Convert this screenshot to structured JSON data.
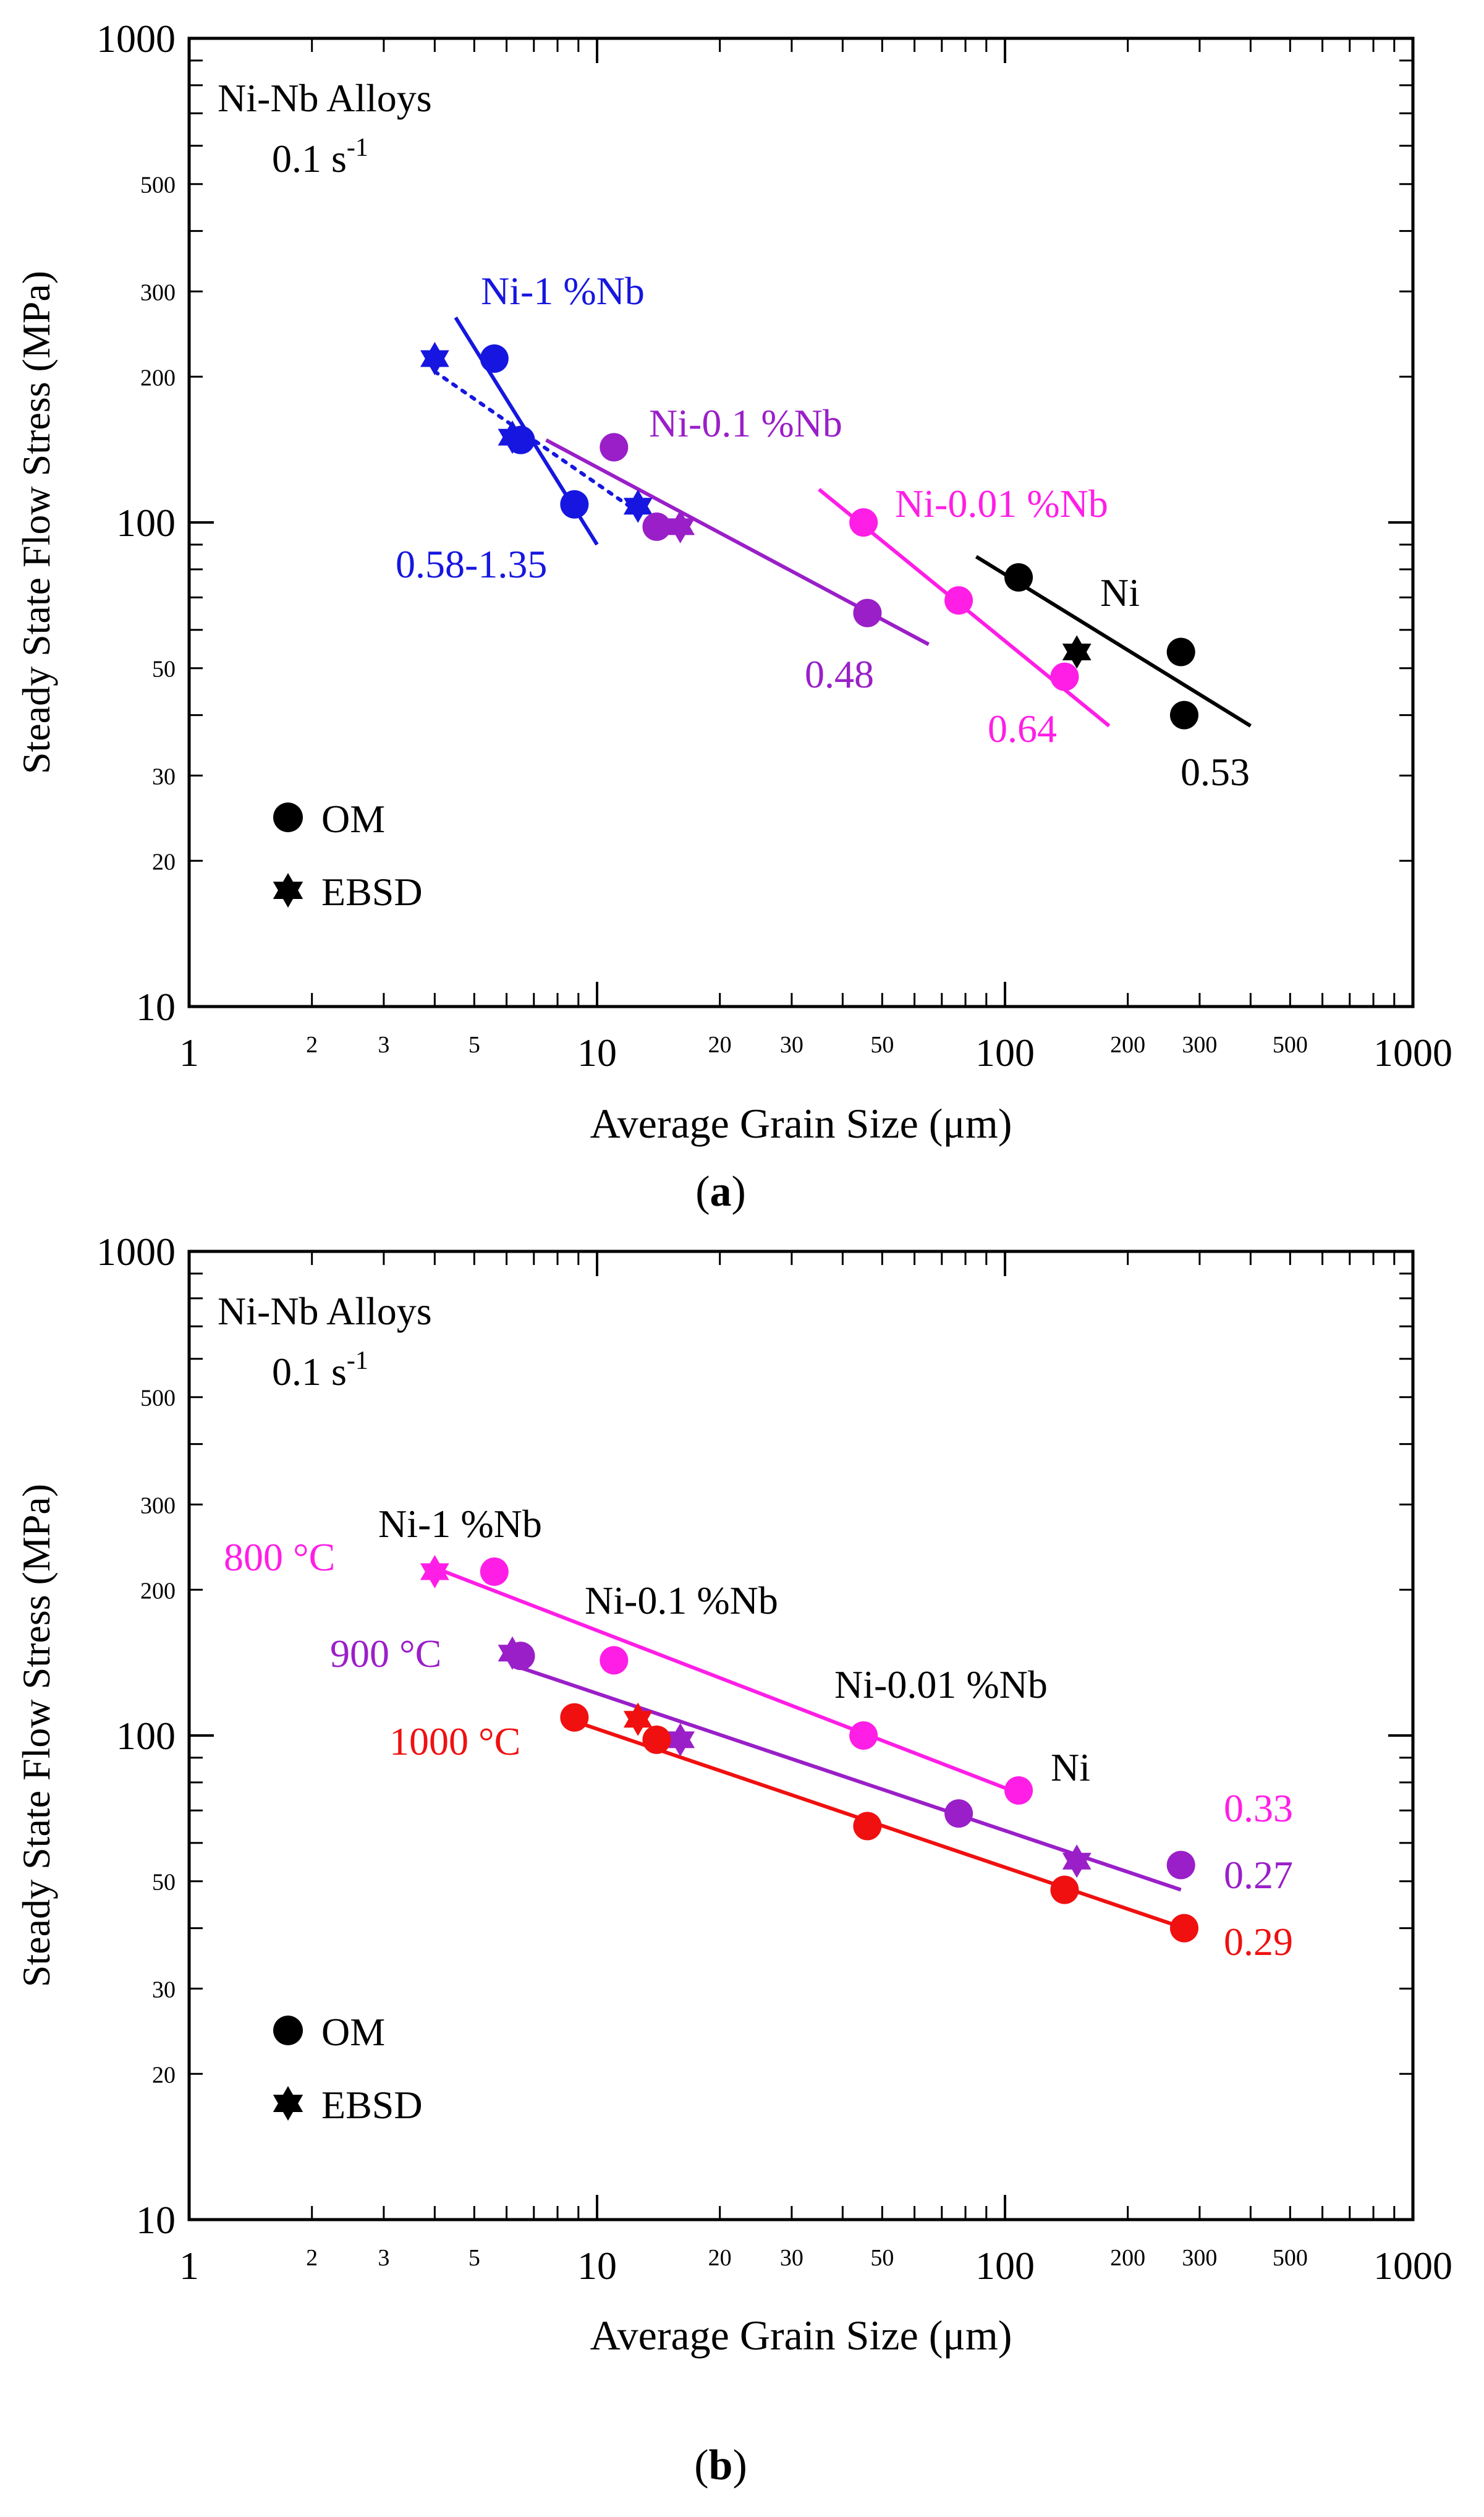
{
  "chart_data": [
    {
      "type": "scatter",
      "panel_label": "(a)",
      "panel_letter": "a",
      "xscale": "log",
      "yscale": "log",
      "xlim": [
        1,
        1000
      ],
      "ylim": [
        10,
        1000
      ],
      "xlabel": "Average Grain Size (μm)",
      "ylabel": "Steady State Flow Stress (MPa)",
      "x_major_ticks": [
        {
          "v": 1,
          "label": "1"
        },
        {
          "v": 10,
          "label": "10"
        },
        {
          "v": 100,
          "label": "100"
        },
        {
          "v": 1000,
          "label": "1000"
        }
      ],
      "x_minor_ticks": [
        {
          "v": 2,
          "label": "2"
        },
        {
          "v": 3,
          "label": "3"
        },
        {
          "v": 5,
          "label": "5"
        },
        {
          "v": 20,
          "label": "20"
        },
        {
          "v": 30,
          "label": "30"
        },
        {
          "v": 50,
          "label": "50"
        },
        {
          "v": 200,
          "label": "200"
        },
        {
          "v": 300,
          "label": "300"
        },
        {
          "v": 500,
          "label": "500"
        }
      ],
      "y_major_ticks": [
        {
          "v": 10,
          "label": "10"
        },
        {
          "v": 100,
          "label": "100"
        },
        {
          "v": 1000,
          "label": "1000"
        }
      ],
      "y_minor_ticks": [
        {
          "v": 20,
          "label": "20"
        },
        {
          "v": 30,
          "label": "30"
        },
        {
          "v": 50,
          "label": "50"
        },
        {
          "v": 200,
          "label": "200"
        },
        {
          "v": 300,
          "label": "300"
        },
        {
          "v": 500,
          "label": "500"
        }
      ],
      "inset_title": "Ni-Nb Alloys",
      "rate_text": "0.1 s",
      "rate_exp": "-1",
      "legend": [
        {
          "marker": "circle",
          "label": "OM"
        },
        {
          "marker": "star",
          "label": "EBSD"
        }
      ],
      "series": [
        {
          "name": "Ni-1 %Nb",
          "color": "#1616e0",
          "om": [
            [
              5.6,
              218
            ],
            [
              6.5,
              148
            ],
            [
              8.8,
              109
            ]
          ],
          "ebsd": [
            [
              4.0,
              218
            ],
            [
              6.2,
              150
            ],
            [
              12.6,
              108
            ]
          ],
          "fit": [
            [
              4.5,
              265
            ],
            [
              10.0,
              90
            ]
          ],
          "fit2": [
            [
              4.0,
              205
            ],
            [
              12.6,
              105
            ]
          ],
          "name_label": "Ni-1 %Nb",
          "exponent_label": "0.58-1.35"
        },
        {
          "name": "Ni-0.1 %Nb",
          "color": "#9a1fc8",
          "om": [
            [
              11,
              143
            ],
            [
              14,
              98
            ],
            [
              46,
              65
            ]
          ],
          "ebsd": [
            [
              16,
              98
            ]
          ],
          "fit": [
            [
              7.5,
              148
            ],
            [
              65,
              56
            ]
          ],
          "name_label": "Ni-0.1 %Nb",
          "exponent_label": "0.48"
        },
        {
          "name": "Ni-0.01 %Nb",
          "color": "#ff1ee6",
          "om": [
            [
              45,
              100
            ],
            [
              77,
              69
            ],
            [
              140,
              48
            ]
          ],
          "ebsd": [],
          "fit": [
            [
              35,
              117
            ],
            [
              180,
              38
            ]
          ],
          "name_label": "Ni-0.01 %Nb",
          "exponent_label": "0.64"
        },
        {
          "name": "Ni",
          "color": "#000000",
          "om": [
            [
              108,
              77
            ],
            [
              270,
              54
            ],
            [
              275,
              40
            ]
          ],
          "ebsd": [
            [
              150,
              54
            ]
          ],
          "fit": [
            [
              85,
              85
            ],
            [
              400,
              38
            ]
          ],
          "name_label": "Ni",
          "exponent_label": "0.53"
        }
      ]
    },
    {
      "type": "scatter",
      "panel_label": "(b)",
      "panel_letter": "b",
      "xscale": "log",
      "yscale": "log",
      "xlim": [
        1,
        1000
      ],
      "ylim": [
        10,
        1000
      ],
      "xlabel": "Average Grain Size (μm)",
      "ylabel": "Steady State Flow Stress (MPa)",
      "x_major_ticks": [
        {
          "v": 1,
          "label": "1"
        },
        {
          "v": 10,
          "label": "10"
        },
        {
          "v": 100,
          "label": "100"
        },
        {
          "v": 1000,
          "label": "1000"
        }
      ],
      "x_minor_ticks": [
        {
          "v": 2,
          "label": "2"
        },
        {
          "v": 3,
          "label": "3"
        },
        {
          "v": 5,
          "label": "5"
        },
        {
          "v": 20,
          "label": "20"
        },
        {
          "v": 30,
          "label": "30"
        },
        {
          "v": 50,
          "label": "50"
        },
        {
          "v": 200,
          "label": "200"
        },
        {
          "v": 300,
          "label": "300"
        },
        {
          "v": 500,
          "label": "500"
        }
      ],
      "y_major_ticks": [
        {
          "v": 10,
          "label": "10"
        },
        {
          "v": 100,
          "label": "100"
        },
        {
          "v": 1000,
          "label": "1000"
        }
      ],
      "y_minor_ticks": [
        {
          "v": 20,
          "label": "20"
        },
        {
          "v": 30,
          "label": "30"
        },
        {
          "v": 50,
          "label": "50"
        },
        {
          "v": 200,
          "label": "200"
        },
        {
          "v": 300,
          "label": "300"
        },
        {
          "v": 500,
          "label": "500"
        }
      ],
      "inset_title": "Ni-Nb Alloys",
      "rate_text": "0.1 s",
      "rate_exp": "-1",
      "legend": [
        {
          "marker": "circle",
          "label": "OM"
        },
        {
          "marker": "star",
          "label": "EBSD"
        }
      ],
      "material_labels": [
        "Ni-1 %Nb",
        "Ni-0.1 %Nb",
        "Ni-0.01 %Nb",
        "Ni"
      ],
      "series": [
        {
          "name": "800 °C",
          "color": "#ff1ee6",
          "om": [
            [
              5.6,
              218
            ],
            [
              11,
              143
            ],
            [
              45,
              100
            ],
            [
              108,
              77
            ]
          ],
          "ebsd": [
            [
              4.0,
              218
            ]
          ],
          "fit": [
            [
              4.0,
              222
            ],
            [
              108,
              76
            ]
          ],
          "name_label": "800 °C",
          "exponent_label": "0.33"
        },
        {
          "name": "900 °C",
          "color": "#9a1fc8",
          "om": [
            [
              6.5,
              146
            ],
            [
              77,
              69
            ],
            [
              270,
              54
            ]
          ],
          "ebsd": [
            [
              6.2,
              148
            ],
            [
              16,
              98
            ],
            [
              150,
              55
            ]
          ],
          "fit": [
            [
              6.5,
              138
            ],
            [
              270,
              48
            ]
          ],
          "name_label": "900 °C",
          "exponent_label": "0.27"
        },
        {
          "name": "1000 °C",
          "color": "#f01010",
          "om": [
            [
              8.8,
              109
            ],
            [
              14,
              98
            ],
            [
              46,
              65
            ],
            [
              140,
              48
            ],
            [
              275,
              40
            ]
          ],
          "ebsd": [
            [
              12.6,
              108
            ]
          ],
          "fit": [
            [
              8.8,
              107
            ],
            [
              275,
              40
            ]
          ],
          "name_label": "1000 °C",
          "exponent_label": "0.29"
        }
      ]
    }
  ]
}
